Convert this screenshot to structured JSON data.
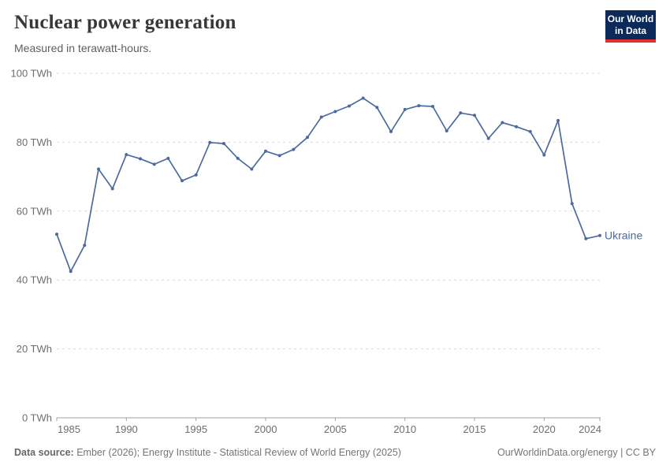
{
  "header": {
    "title": "Nuclear power generation",
    "subtitle": "Measured in terawatt-hours.",
    "logo_line1": "Our World",
    "logo_line2": "in Data"
  },
  "chart_data": {
    "type": "line",
    "title": "Nuclear power generation",
    "subtitle": "Measured in terawatt-hours.",
    "unit": "TWh",
    "ylim": [
      0,
      100
    ],
    "yticks": [
      0,
      20,
      40,
      60,
      80,
      100
    ],
    "ytick_suffix": " TWh",
    "xticks": [
      1985,
      1990,
      1995,
      2000,
      2005,
      2010,
      2015,
      2020,
      2024
    ],
    "x_range": [
      1985,
      2024
    ],
    "grid": "horizontal-dashed",
    "legend_position": "end-of-line-label",
    "x": [
      1985,
      1986,
      1987,
      1988,
      1989,
      1990,
      1991,
      1992,
      1993,
      1994,
      1995,
      1996,
      1997,
      1998,
      1999,
      2000,
      2001,
      2002,
      2003,
      2004,
      2005,
      2006,
      2007,
      2008,
      2009,
      2010,
      2011,
      2012,
      2013,
      2014,
      2015,
      2016,
      2017,
      2018,
      2019,
      2020,
      2021,
      2022,
      2023,
      2024
    ],
    "series": [
      {
        "name": "Ukraine",
        "color": "#4C6A9C",
        "values": [
          53.3,
          42.5,
          50.1,
          72.2,
          66.5,
          76.4,
          75.2,
          73.6,
          75.3,
          68.8,
          70.5,
          79.9,
          79.6,
          75.3,
          72.2,
          77.4,
          76.1,
          77.9,
          81.4,
          87.3,
          88.9,
          90.5,
          92.8,
          90.1,
          83.1,
          89.5,
          90.6,
          90.4,
          83.3,
          88.5,
          87.8,
          81.1,
          85.7,
          84.5,
          83.1,
          76.3,
          86.3,
          62.2,
          52.0,
          52.9
        ]
      }
    ]
  },
  "footer": {
    "source_label": "Data source:",
    "source_text": " Ember (2026); Energy Institute - Statistical Review of World Energy (2025)",
    "link_text": "OurWorldinData.org/energy | CC BY"
  },
  "colors": {
    "line": "#4C6A9C",
    "grid": "#d9d9d9",
    "axis": "#a1a1a1",
    "tick_label": "#6e6e6e",
    "entity_label": "#4C6A9C"
  }
}
